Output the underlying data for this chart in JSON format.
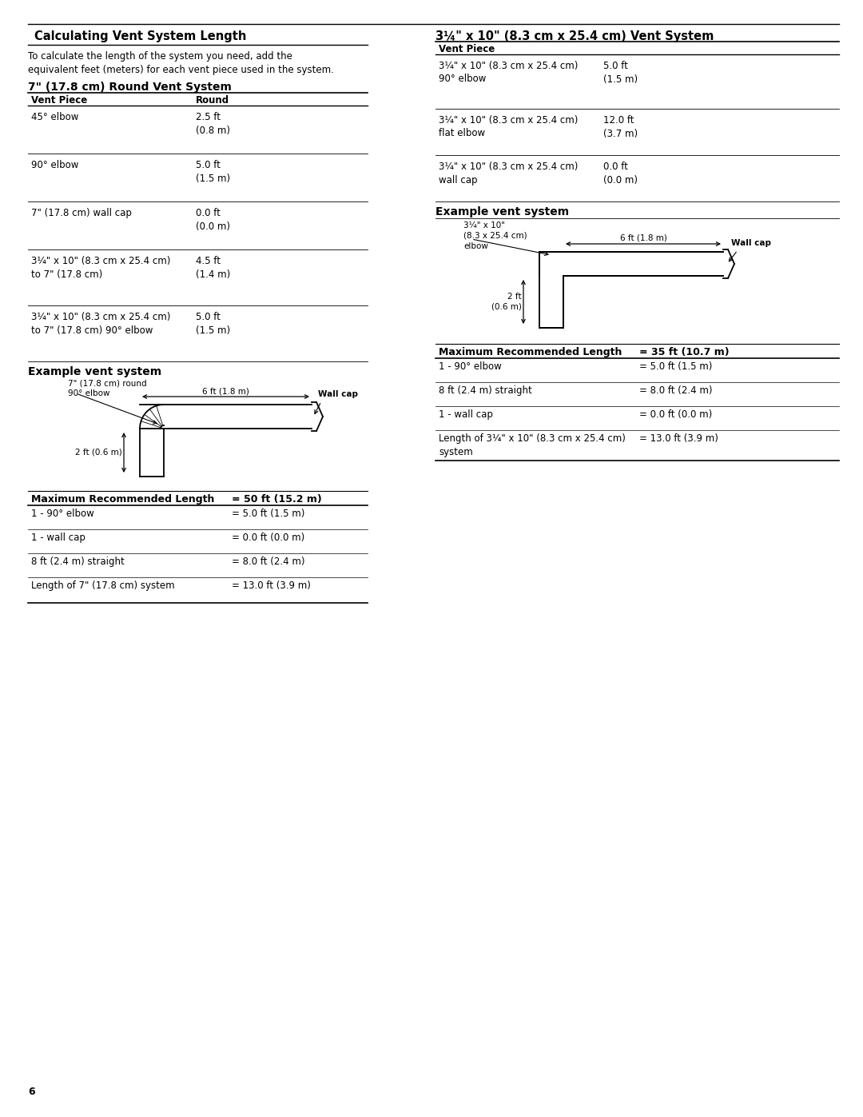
{
  "page_bg": "#ffffff",
  "page_number": "6",
  "sections": {
    "calc_title": "Calculating Vent System Length",
    "calc_desc": "To calculate the length of the system you need, add the\nequivalent feet (meters) for each vent piece used in the system.",
    "round_title": "7\" (17.8 cm) Round Vent System",
    "round_header_col1": "Vent Piece",
    "round_header_col2": "Round",
    "round_rows": [
      {
        "col1": "45° elbow",
        "col2": "2.5 ft\n(0.8 m)"
      },
      {
        "col1": "90° elbow",
        "col2": "5.0 ft\n(1.5 m)"
      },
      {
        "col1": "7\" (17.8 cm) wall cap",
        "col2": "0.0 ft\n(0.0 m)"
      },
      {
        "col1": "3¼\" x 10\" (8.3 cm x 25.4 cm)\nto 7\" (17.8 cm)",
        "col2": "4.5 ft\n(1.4 m)"
      },
      {
        "col1": "3¼\" x 10\" (8.3 cm x 25.4 cm)\nto 7\" (17.8 cm) 90° elbow",
        "col2": "5.0 ft\n(1.5 m)"
      }
    ],
    "left_example_title": "Example vent system",
    "left_example_label1": "7\" (17.8 cm) round\n90° elbow",
    "left_example_label2": "6 ft (1.8 m)",
    "left_example_label3": "Wall cap",
    "left_example_label4": "2 ft (0.6 m)",
    "left_max_label": "Maximum Recommended Length",
    "left_max_value": "= 50 ft (15.2 m)",
    "left_summary_rows": [
      {
        "col1": "1 - 90° elbow",
        "col2": "= 5.0 ft (1.5 m)"
      },
      {
        "col1": "1 - wall cap",
        "col2": "= 0.0 ft (0.0 m)"
      },
      {
        "col1": "8 ft (2.4 m) straight",
        "col2": "= 8.0 ft (2.4 m)"
      },
      {
        "col1": "Length of 7\" (17.8 cm) system",
        "col2": "= 13.0 ft (3.9 m)"
      }
    ],
    "rect_title": "3¼\" x 10\" (8.3 cm x 25.4 cm) Vent System",
    "rect_header_col1": "Vent Piece",
    "rect_rows": [
      {
        "col1": "3¼\" x 10\" (8.3 cm x 25.4 cm)\n90° elbow",
        "col2": "5.0 ft\n(1.5 m)"
      },
      {
        "col1": "3¼\" x 10\" (8.3 cm x 25.4 cm)\nflat elbow",
        "col2": "12.0 ft\n(3.7 m)"
      },
      {
        "col1": "3¼\" x 10\" (8.3 cm x 25.4 cm)\nwall cap",
        "col2": "0.0 ft\n(0.0 m)"
      }
    ],
    "right_example_title": "Example vent system",
    "right_example_label1": "3¼\" x 10\"\n(8.3 x 25.4 cm)\nelbow",
    "right_example_label2": "6 ft (1.8 m)",
    "right_example_label3": "Wall cap",
    "right_example_label4": "2 ft\n(0.6 m)",
    "right_max_label": "Maximum Recommended Length",
    "right_max_value": "= 35 ft (10.7 m)",
    "right_summary_rows": [
      {
        "col1": "1 - 90° elbow",
        "col2": "= 5.0 ft (1.5 m)"
      },
      {
        "col1": "8 ft (2.4 m) straight",
        "col2": "= 8.0 ft (2.4 m)"
      },
      {
        "col1": "1 - wall cap",
        "col2": "= 0.0 ft (0.0 m)"
      },
      {
        "col1": "Length of 3¼\" x 10\" (8.3 cm x 25.4 cm)\nsystem",
        "col2": "= 13.0 ft (3.9 m)"
      }
    ]
  }
}
